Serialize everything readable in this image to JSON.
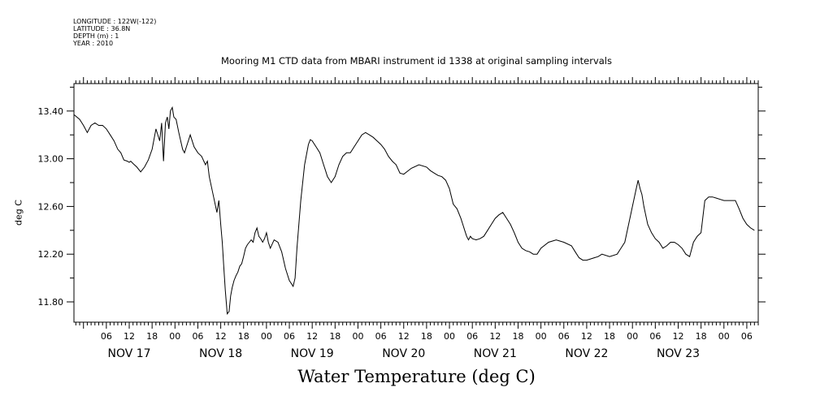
{
  "meta": {
    "longitude": "LONGITUDE : 122W(-122)",
    "latitude": "LATITUDE : 36.8N",
    "depth": "DEPTH (m) : 1",
    "year": "YEAR : 2010"
  },
  "chart_data": {
    "type": "line",
    "title": "Mooring M1 CTD data from MBARI instrument id 1338 at original sampling intervals",
    "xlabel": "Water Temperature (deg C)",
    "ylabel": "deg C",
    "ylim": [
      11.63,
      13.63
    ],
    "xlim_hours": [
      -2.5,
      177
    ],
    "x_unit": "hours since 2010-11-17 00:00",
    "yticks": [
      11.8,
      12.2,
      12.6,
      13.0,
      13.4
    ],
    "ytick_labels": [
      "11.80",
      "12.20",
      "12.60",
      "13.00",
      "13.40"
    ],
    "hour_labels": [
      "06",
      "12",
      "18",
      "00"
    ],
    "day_labels": [
      "NOV 17",
      "NOV 18",
      "NOV 19",
      "NOV 20",
      "NOV 21",
      "NOV 22",
      "NOV 23"
    ],
    "grid": false,
    "series": [
      {
        "name": "",
        "x": [
          -2.5,
          -1,
          0,
          1,
          2,
          3,
          4,
          5,
          6,
          7,
          8,
          9,
          9.8,
          10.6,
          11.5,
          12,
          12.4,
          13,
          14,
          15,
          16,
          17,
          18,
          19,
          20,
          20.5,
          21,
          21.5,
          22,
          22.4,
          22.8,
          23.3,
          23.7,
          24.3,
          25,
          26,
          26.5,
          27,
          28,
          29,
          30,
          31,
          32,
          32.5,
          33,
          34,
          35,
          35.5,
          36,
          36.4,
          36.8,
          37.2,
          37.7,
          38.2,
          38.6,
          39,
          39.5,
          40,
          40.5,
          41,
          41.5,
          42,
          42.5,
          43,
          43.5,
          44,
          44.5,
          45,
          45.5,
          46,
          46.5,
          47,
          47.5,
          48,
          48.5,
          49,
          50,
          51,
          52,
          53,
          54,
          55,
          55.5,
          56,
          57,
          58,
          59,
          59.5,
          60,
          61,
          62,
          62.5,
          63,
          63.5,
          64,
          65,
          66,
          67,
          68,
          69,
          70,
          71,
          72,
          73,
          74,
          75,
          76,
          77,
          78,
          79,
          80,
          81,
          82,
          83,
          84,
          86,
          88,
          90,
          91,
          92,
          93,
          94,
          95,
          96,
          97,
          98,
          99,
          99.5,
          100,
          100.5,
          101,
          101.5,
          102,
          103,
          104,
          105,
          106,
          107,
          108,
          109,
          110,
          111,
          112,
          113,
          114,
          115,
          116,
          117,
          118,
          119,
          120,
          122,
          124,
          126,
          128,
          129,
          130,
          131,
          132,
          133,
          134,
          135,
          136,
          138,
          140,
          142,
          143,
          144,
          145,
          145.5,
          146,
          146.5,
          147,
          148,
          149,
          150,
          151,
          152,
          153,
          154,
          155,
          156,
          157,
          158,
          159,
          160,
          161,
          162,
          163,
          164,
          165,
          166,
          168,
          170,
          171,
          172,
          173,
          174,
          175,
          176
        ],
        "values": [
          13.37,
          13.33,
          13.28,
          13.22,
          13.28,
          13.3,
          13.28,
          13.28,
          13.25,
          13.2,
          13.15,
          13.08,
          13.05,
          12.99,
          12.98,
          12.97,
          12.98,
          12.96,
          12.93,
          12.89,
          12.93,
          12.99,
          13.08,
          13.25,
          13.15,
          13.3,
          12.98,
          13.3,
          13.35,
          13.25,
          13.4,
          13.43,
          13.35,
          13.33,
          13.22,
          13.08,
          13.05,
          13.1,
          13.2,
          13.1,
          13.05,
          13.02,
          12.95,
          12.98,
          12.85,
          12.7,
          12.55,
          12.65,
          12.45,
          12.3,
          12.1,
          11.9,
          11.7,
          11.72,
          11.85,
          11.92,
          11.98,
          12.02,
          12.05,
          12.1,
          12.12,
          12.18,
          12.25,
          12.28,
          12.3,
          12.32,
          12.3,
          12.38,
          12.42,
          12.35,
          12.33,
          12.3,
          12.33,
          12.38,
          12.3,
          12.25,
          12.32,
          12.3,
          12.22,
          12.08,
          11.98,
          11.93,
          12.0,
          12.25,
          12.65,
          12.95,
          13.12,
          13.16,
          13.15,
          13.1,
          13.05,
          13.0,
          12.95,
          12.9,
          12.85,
          12.8,
          12.85,
          12.95,
          13.02,
          13.05,
          13.05,
          13.1,
          13.15,
          13.2,
          13.22,
          13.2,
          13.18,
          13.15,
          13.12,
          13.08,
          13.02,
          12.98,
          12.95,
          12.88,
          12.87,
          12.92,
          12.95,
          12.93,
          12.9,
          12.88,
          12.86,
          12.85,
          12.82,
          12.75,
          12.62,
          12.58,
          12.5,
          12.45,
          12.4,
          12.35,
          12.32,
          12.35,
          12.33,
          12.32,
          12.33,
          12.35,
          12.4,
          12.45,
          12.5,
          12.53,
          12.55,
          12.5,
          12.45,
          12.38,
          12.3,
          12.25,
          12.23,
          12.22,
          12.2,
          12.2,
          12.25,
          12.3,
          12.32,
          12.3,
          12.27,
          12.22,
          12.17,
          12.15,
          12.15,
          12.16,
          12.17,
          12.18,
          12.2,
          12.18,
          12.2,
          12.3,
          12.45,
          12.6,
          12.75,
          12.82,
          12.75,
          12.7,
          12.6,
          12.45,
          12.38,
          12.33,
          12.3,
          12.25,
          12.27,
          12.3,
          12.3,
          12.28,
          12.25,
          12.2,
          12.18,
          12.3,
          12.35,
          12.38,
          12.65,
          12.68,
          12.68,
          12.67,
          12.65,
          12.65,
          12.65,
          12.58,
          12.5,
          12.45,
          12.42,
          12.4
        ]
      }
    ]
  }
}
